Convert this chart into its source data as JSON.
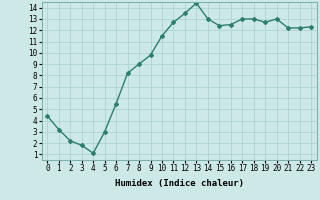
{
  "x": [
    0,
    1,
    2,
    3,
    4,
    5,
    6,
    7,
    8,
    9,
    10,
    11,
    12,
    13,
    14,
    15,
    16,
    17,
    18,
    19,
    20,
    21,
    22,
    23
  ],
  "y": [
    4.4,
    3.2,
    2.2,
    1.8,
    1.1,
    3.0,
    5.5,
    8.2,
    9.0,
    9.8,
    11.5,
    12.7,
    13.5,
    14.4,
    13.0,
    12.4,
    12.5,
    13.0,
    13.0,
    12.7,
    13.0,
    12.2,
    12.2,
    12.3
  ],
  "line_color": "#2e7d6e",
  "marker": "D",
  "marker_size": 2.0,
  "line_width": 1.0,
  "bg_color": "#cce9e7",
  "grid_color": "#aed4d1",
  "xlabel": "Humidex (Indice chaleur)",
  "xlim": [
    -0.5,
    23.5
  ],
  "ylim": [
    0.5,
    14.5
  ],
  "xtick_labels": [
    "0",
    "1",
    "2",
    "3",
    "4",
    "5",
    "6",
    "7",
    "8",
    "9",
    "10",
    "11",
    "12",
    "13",
    "14",
    "15",
    "16",
    "17",
    "18",
    "19",
    "20",
    "21",
    "22",
    "23"
  ],
  "ytick_values": [
    1,
    2,
    3,
    4,
    5,
    6,
    7,
    8,
    9,
    10,
    11,
    12,
    13,
    14
  ],
  "label_fontsize": 6.5,
  "tick_fontsize": 5.5
}
